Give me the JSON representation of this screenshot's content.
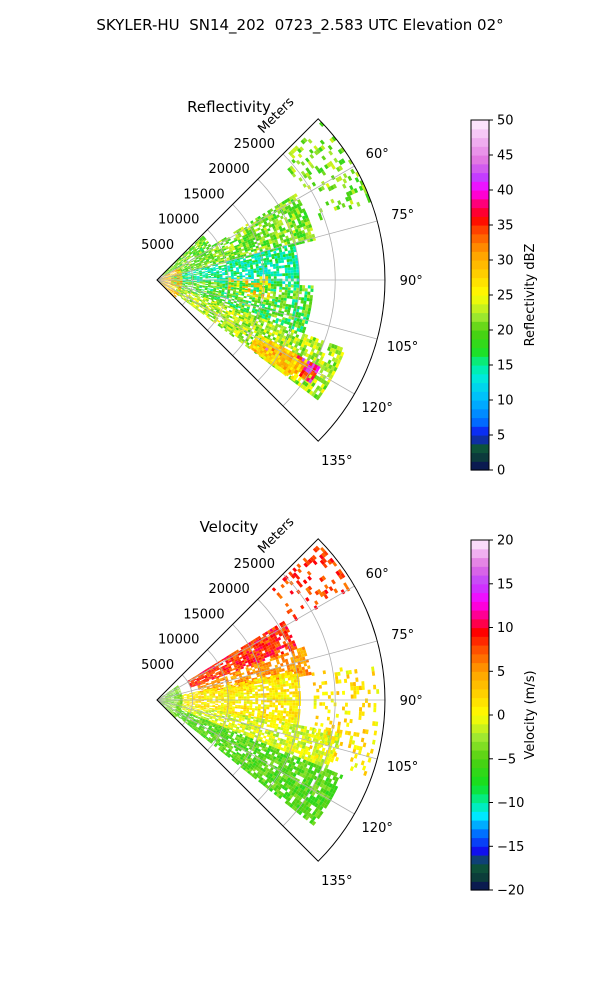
{
  "suptitle": "SKYLER-HU  SN14_202  0723_2.583 UTC Elevation 02°",
  "chart_data": [
    {
      "type": "heatmap",
      "projection": "polar-sector",
      "title": "Reflectivity",
      "radial_label": "Meters",
      "radial_ticks": [
        5000,
        10000,
        15000,
        20000,
        25000
      ],
      "radial_tick_labels": [
        "5000",
        "10000",
        "15000",
        "20000",
        "25000"
      ],
      "r_max": 32000,
      "azimuth_range_deg": [
        45,
        135
      ],
      "azimuth_ticks_deg": [
        60,
        75,
        90,
        105,
        120,
        135
      ],
      "azimuth_tick_labels": [
        "60°",
        "75°",
        "90°",
        "105°",
        "120°",
        "135°"
      ],
      "grid": true,
      "colorbar": {
        "label": "Reflectivity dBZ",
        "range": [
          0,
          50
        ],
        "ticks": [
          0,
          5,
          10,
          15,
          20,
          25,
          30,
          35,
          40,
          45,
          50
        ],
        "tick_labels": [
          "0",
          "5",
          "10",
          "15",
          "20",
          "25",
          "30",
          "35",
          "40",
          "45",
          "50"
        ],
        "stops": [
          {
            "v": 0,
            "c": "#0a0a5a"
          },
          {
            "v": 2,
            "c": "#0b3d3a"
          },
          {
            "v": 3.5,
            "c": "#0e5a3a"
          },
          {
            "v": 5,
            "c": "#1010ee"
          },
          {
            "v": 7,
            "c": "#0070ff"
          },
          {
            "v": 10,
            "c": "#00b8ff"
          },
          {
            "v": 13,
            "c": "#00e8e0"
          },
          {
            "v": 15,
            "c": "#00f0a0"
          },
          {
            "v": 17,
            "c": "#20e020"
          },
          {
            "v": 20,
            "c": "#50d010"
          },
          {
            "v": 22,
            "c": "#a0e830"
          },
          {
            "v": 25,
            "c": "#ffff00"
          },
          {
            "v": 28,
            "c": "#ffd000"
          },
          {
            "v": 31,
            "c": "#ffa000"
          },
          {
            "v": 34,
            "c": "#ff5000"
          },
          {
            "v": 36,
            "c": "#ff0000"
          },
          {
            "v": 38,
            "c": "#ff0070"
          },
          {
            "v": 40,
            "c": "#ff00ff"
          },
          {
            "v": 42,
            "c": "#c040ff"
          },
          {
            "v": 44,
            "c": "#e070e0"
          },
          {
            "v": 47,
            "c": "#f0b0f0"
          },
          {
            "v": 50,
            "c": "#fff0ff"
          }
        ]
      },
      "regions": [
        {
          "az": [
            46,
            58
          ],
          "r": [
            1000,
            9000
          ],
          "v": [
            16,
            24
          ],
          "density": 0.85
        },
        {
          "az": [
            58,
            75
          ],
          "r": [
            3000,
            23000
          ],
          "v": [
            17,
            24
          ],
          "density": 0.75
        },
        {
          "az": [
            75,
            92
          ],
          "r": [
            2000,
            20000
          ],
          "v": [
            12,
            18
          ],
          "density": 0.75
        },
        {
          "az": [
            92,
            110
          ],
          "r": [
            2000,
            22000
          ],
          "v": [
            14,
            23
          ],
          "density": 0.75
        },
        {
          "az": [
            110,
            126
          ],
          "r": [
            3000,
            28000
          ],
          "v": [
            19,
            26
          ],
          "density": 0.8
        },
        {
          "az": [
            118,
            124
          ],
          "r": [
            18000,
            26000
          ],
          "v": [
            32,
            44
          ],
          "density": 0.95
        },
        {
          "az": [
            118,
            126
          ],
          "r": [
            16000,
            24000
          ],
          "v": [
            24,
            32
          ],
          "density": 0.85
        },
        {
          "az": [
            46,
            70
          ],
          "r": [
            24000,
            32000
          ],
          "v": [
            18,
            24
          ],
          "density": 0.3
        },
        {
          "az": [
            88,
            100
          ],
          "r": [
            10000,
            16000
          ],
          "v": [
            24,
            32
          ],
          "density": 0.35
        },
        {
          "az": [
            60,
            140
          ],
          "r": [
            0,
            3500
          ],
          "v": [
            24,
            34
          ],
          "density": 0.7
        }
      ]
    },
    {
      "type": "heatmap",
      "projection": "polar-sector",
      "title": "Velocity",
      "radial_label": "Meters",
      "radial_ticks": [
        5000,
        10000,
        15000,
        20000,
        25000
      ],
      "radial_tick_labels": [
        "5000",
        "10000",
        "15000",
        "20000",
        "25000"
      ],
      "r_max": 32000,
      "azimuth_range_deg": [
        45,
        135
      ],
      "azimuth_ticks_deg": [
        60,
        75,
        90,
        105,
        120,
        135
      ],
      "azimuth_tick_labels": [
        "60°",
        "75°",
        "90°",
        "105°",
        "120°",
        "135°"
      ],
      "grid": true,
      "colorbar": {
        "label": "Velocity (m/s)",
        "range": [
          -20,
          20
        ],
        "ticks": [
          -20,
          -15,
          -10,
          -5,
          0,
          5,
          10,
          15,
          20
        ],
        "tick_labels": [
          "−20",
          "−15",
          "−10",
          "−5",
          "0",
          "5",
          "10",
          "15",
          "20"
        ],
        "stops": [
          {
            "v": -20,
            "c": "#0a0a5a"
          },
          {
            "v": -18.5,
            "c": "#0b3d3a"
          },
          {
            "v": -17,
            "c": "#0e5a3a"
          },
          {
            "v": -15.5,
            "c": "#1010ee"
          },
          {
            "v": -13.5,
            "c": "#0070ff"
          },
          {
            "v": -11.5,
            "c": "#00e8ff"
          },
          {
            "v": -10,
            "c": "#00f0a0"
          },
          {
            "v": -8,
            "c": "#10e020"
          },
          {
            "v": -5,
            "c": "#50d010"
          },
          {
            "v": -2.5,
            "c": "#a0e830"
          },
          {
            "v": 0,
            "c": "#ffff00"
          },
          {
            "v": 2.5,
            "c": "#ffd000"
          },
          {
            "v": 5,
            "c": "#ffa000"
          },
          {
            "v": 7.5,
            "c": "#ff5000"
          },
          {
            "v": 9.5,
            "c": "#ff0000"
          },
          {
            "v": 11,
            "c": "#ff0070"
          },
          {
            "v": 13,
            "c": "#ff00ff"
          },
          {
            "v": 15,
            "c": "#c040ff"
          },
          {
            "v": 17,
            "c": "#e070e0"
          },
          {
            "v": 20,
            "c": "#fff0ff"
          }
        ]
      },
      "regions": [
        {
          "az": [
            58,
            70
          ],
          "r": [
            5000,
            21000
          ],
          "v": [
            6,
            11
          ],
          "density": 0.85
        },
        {
          "az": [
            70,
            80
          ],
          "r": [
            6000,
            22000
          ],
          "v": [
            3,
            7
          ],
          "density": 0.7
        },
        {
          "az": [
            78,
            100
          ],
          "r": [
            3000,
            20000
          ],
          "v": [
            -1,
            3
          ],
          "density": 0.8
        },
        {
          "az": [
            100,
            112
          ],
          "r": [
            3000,
            26000
          ],
          "v": [
            -3,
            1
          ],
          "density": 0.75
        },
        {
          "az": [
            112,
            128
          ],
          "r": [
            3000,
            28000
          ],
          "v": [
            -7,
            -3
          ],
          "density": 0.85
        },
        {
          "az": [
            46,
            60
          ],
          "r": [
            22000,
            32000
          ],
          "v": [
            6,
            10
          ],
          "density": 0.25
        },
        {
          "az": [
            80,
            110
          ],
          "r": [
            22000,
            31000
          ],
          "v": [
            -1,
            4
          ],
          "density": 0.25
        },
        {
          "az": [
            55,
            140
          ],
          "r": [
            0,
            3500
          ],
          "v": [
            -6,
            -2
          ],
          "density": 0.75
        }
      ]
    }
  ]
}
